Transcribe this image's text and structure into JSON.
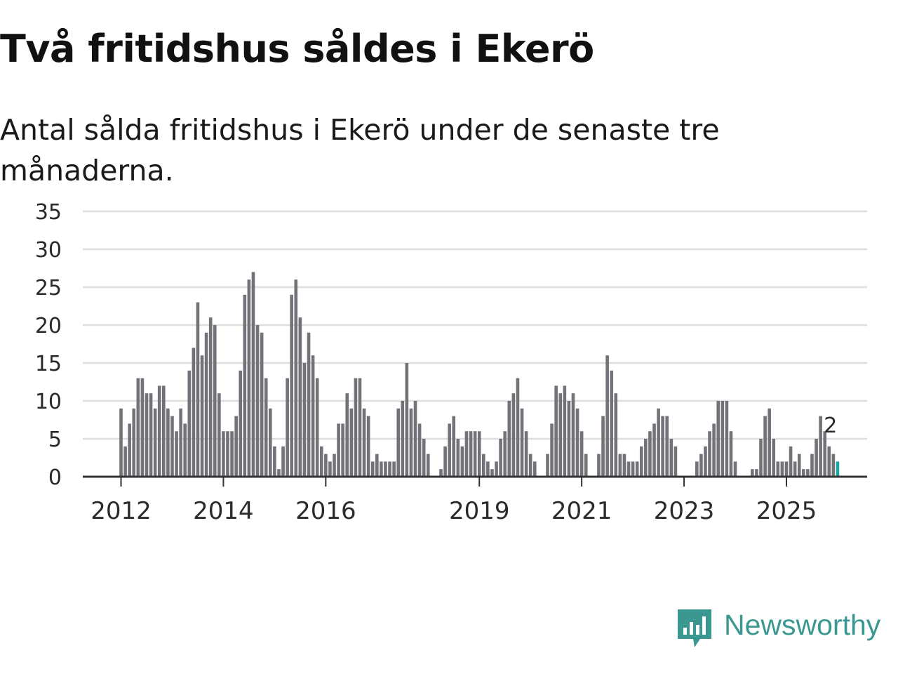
{
  "title": "Två fritidshus såldes i Ekerö",
  "subtitle": "Antal sålda fritidshus i Ekerö under de senaste tre månaderna.",
  "brand": {
    "name": "Newsworthy",
    "color": "#3a9890",
    "icon": "newsworthy-logo-icon"
  },
  "chart_data": {
    "type": "bar",
    "ylim": [
      0,
      35
    ],
    "yticks": [
      0,
      5,
      10,
      15,
      20,
      25,
      30,
      35
    ],
    "xticks": [
      {
        "label": "2012",
        "index": 0
      },
      {
        "label": "2014",
        "index": 24
      },
      {
        "label": "2016",
        "index": 48
      },
      {
        "label": "2019",
        "index": 84
      },
      {
        "label": "2021",
        "index": 108
      },
      {
        "label": "2023",
        "index": 132
      },
      {
        "label": "2025",
        "index": 156
      }
    ],
    "x_start": "2012-01",
    "values": [
      9,
      4,
      7,
      9,
      13,
      13,
      11,
      11,
      9,
      12,
      12,
      9,
      8,
      6,
      9,
      7,
      14,
      17,
      23,
      16,
      19,
      21,
      20,
      11,
      6,
      6,
      6,
      8,
      14,
      24,
      26,
      27,
      20,
      19,
      13,
      9,
      4,
      1,
      4,
      13,
      24,
      26,
      21,
      15,
      19,
      16,
      13,
      4,
      3,
      2,
      3,
      7,
      7,
      11,
      9,
      13,
      13,
      9,
      8,
      2,
      3,
      2,
      2,
      2,
      2,
      9,
      10,
      15,
      9,
      10,
      7,
      5,
      3,
      0,
      0,
      1,
      4,
      7,
      8,
      5,
      4,
      6,
      6,
      6,
      6,
      3,
      2,
      1,
      2,
      5,
      6,
      10,
      11,
      13,
      9,
      6,
      3,
      2,
      0,
      0,
      3,
      7,
      12,
      11,
      12,
      10,
      11,
      9,
      6,
      3,
      0,
      0,
      3,
      8,
      16,
      14,
      11,
      3,
      3,
      2,
      2,
      2,
      4,
      5,
      6,
      7,
      9,
      8,
      8,
      5,
      4,
      0,
      0,
      0,
      0,
      2,
      3,
      4,
      6,
      7,
      10,
      10,
      10,
      6,
      2,
      0,
      0,
      0,
      1,
      1,
      5,
      8,
      9,
      5,
      2,
      2,
      2,
      4,
      2,
      3,
      1,
      1,
      3,
      5,
      8,
      6,
      4,
      3,
      2
    ],
    "bar_color": "#737278",
    "highlight_color": "#1aa7a1",
    "highlight_last": 1,
    "annotation": {
      "text": "2",
      "index": 166
    }
  }
}
